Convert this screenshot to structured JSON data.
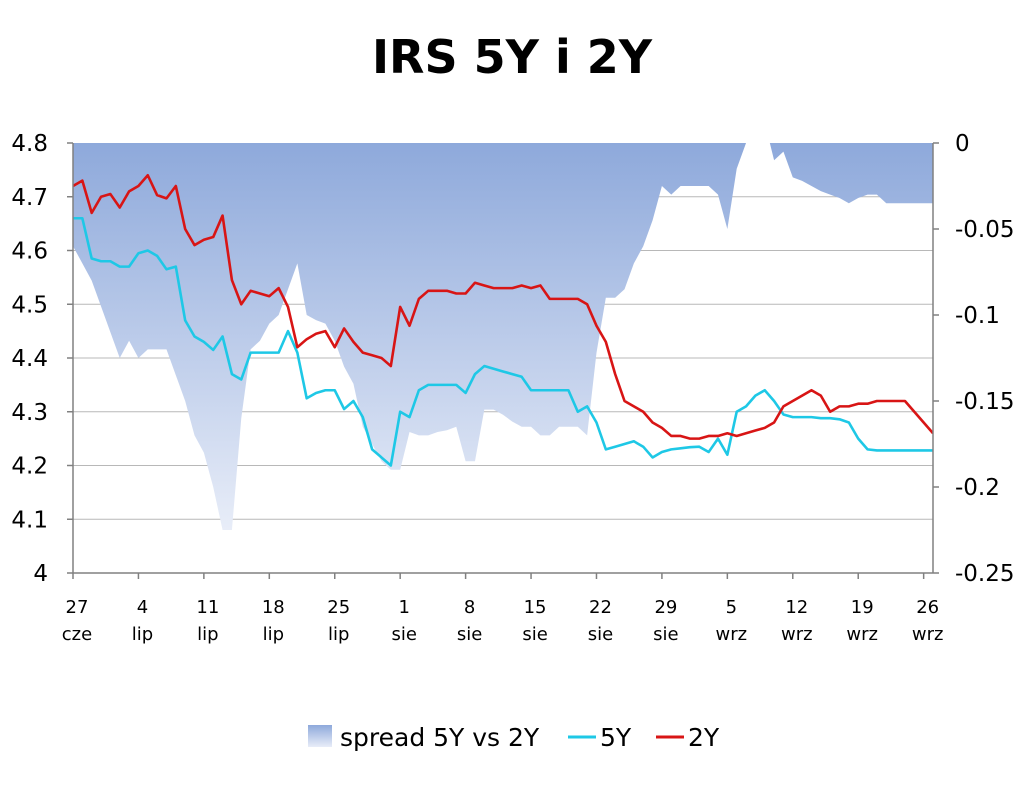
{
  "chart_data": {
    "type": "line",
    "title": "IRS 5Y i 2Y",
    "colors": {
      "spread": "#8EA9DB",
      "5Y": "#1EC8E6",
      "2Y": "#D81515"
    },
    "x_axis": {
      "tick_labels": [
        {
          "day": "27",
          "month": "cze"
        },
        {
          "day": "4",
          "month": "lip"
        },
        {
          "day": "11",
          "month": "lip"
        },
        {
          "day": "18",
          "month": "lip"
        },
        {
          "day": "25",
          "month": "lip"
        },
        {
          "day": "1",
          "month": "sie"
        },
        {
          "day": "8",
          "month": "sie"
        },
        {
          "day": "15",
          "month": "sie"
        },
        {
          "day": "22",
          "month": "sie"
        },
        {
          "day": "29",
          "month": "sie"
        },
        {
          "day": "5",
          "month": "wrz"
        },
        {
          "day": "12",
          "month": "wrz"
        },
        {
          "day": "19",
          "month": "wrz"
        },
        {
          "day": "26",
          "month": "wrz"
        }
      ]
    },
    "y_left": {
      "ylim": [
        4.0,
        4.8
      ],
      "ticks": [
        "4.8",
        "4.7",
        "4.6",
        "4.5",
        "4.4",
        "4.3",
        "4.2",
        "4.1",
        "4"
      ]
    },
    "y_right": {
      "ylim": [
        -0.25,
        0.0
      ],
      "ticks": [
        "0",
        "-0.05",
        "-0.1",
        "-0.15",
        "-0.2",
        "-0.25"
      ]
    },
    "grid": "horizontal",
    "legend_position": "bottom",
    "legend": [
      {
        "name": "spread 5Y vs 2Y",
        "kind": "area"
      },
      {
        "name": "5Y",
        "kind": "line"
      },
      {
        "name": "2Y",
        "kind": "line"
      }
    ],
    "series": [
      {
        "name": "2Y",
        "axis": "left",
        "type": "line",
        "x": [
          0,
          1,
          2,
          3,
          4,
          5,
          6,
          7,
          8,
          9,
          10,
          11,
          12,
          13,
          14,
          15,
          16,
          17,
          18,
          19,
          20,
          21,
          22,
          23,
          24,
          25,
          26,
          27,
          28,
          29,
          30,
          31,
          32,
          33,
          34,
          35,
          36,
          37,
          38,
          39,
          40,
          41,
          42,
          43,
          44,
          45,
          46,
          47,
          48,
          49,
          50,
          51,
          52,
          53,
          54,
          55,
          56,
          57,
          58,
          59,
          60,
          61,
          62,
          63,
          64,
          65,
          66,
          67,
          68,
          69,
          70,
          71,
          72,
          73,
          74,
          75,
          76,
          77,
          78,
          79,
          80,
          81,
          82,
          83,
          84,
          85,
          86,
          87,
          88,
          89,
          90,
          91,
          92
        ],
        "values": [
          4.72,
          4.73,
          4.67,
          4.7,
          4.705,
          4.68,
          4.71,
          4.72,
          4.74,
          4.703,
          4.697,
          4.72,
          4.64,
          4.61,
          4.62,
          4.625,
          4.665,
          4.545,
          4.5,
          4.525,
          4.52,
          4.515,
          4.53,
          4.495,
          4.42,
          4.435,
          4.445,
          4.45,
          4.42,
          4.455,
          4.43,
          4.41,
          4.405,
          4.4,
          4.385,
          4.495,
          4.46,
          4.51,
          4.525,
          4.525,
          4.525,
          4.52,
          4.52,
          4.54,
          4.535,
          4.53,
          4.53,
          4.53,
          4.535,
          4.53,
          4.535,
          4.51,
          4.51,
          4.51,
          4.51,
          4.5,
          4.46,
          4.43,
          4.37,
          4.32,
          4.31,
          4.3,
          4.28,
          4.27,
          4.255,
          4.255,
          4.25,
          4.25,
          4.255,
          4.255,
          4.26,
          4.255,
          4.26,
          4.265,
          4.27,
          4.28,
          4.31,
          4.32,
          4.33,
          4.34,
          4.33,
          4.3,
          4.31,
          4.31,
          4.315,
          4.315,
          4.32,
          4.32,
          4.32,
          4.32,
          4.3,
          4.28,
          4.26
        ]
      },
      {
        "name": "5Y",
        "axis": "left",
        "type": "line",
        "x": [
          0,
          1,
          2,
          3,
          4,
          5,
          6,
          7,
          8,
          9,
          10,
          11,
          12,
          13,
          14,
          15,
          16,
          17,
          18,
          19,
          20,
          21,
          22,
          23,
          24,
          25,
          26,
          27,
          28,
          29,
          30,
          31,
          32,
          33,
          34,
          35,
          36,
          37,
          38,
          39,
          40,
          41,
          42,
          43,
          44,
          45,
          46,
          47,
          48,
          49,
          50,
          51,
          52,
          53,
          54,
          55,
          56,
          57,
          58,
          59,
          60,
          61,
          62,
          63,
          64,
          65,
          66,
          67,
          68,
          69,
          70,
          71,
          72,
          73,
          74,
          75,
          76,
          77,
          78,
          79,
          80,
          81,
          82,
          83,
          84,
          85,
          86,
          87,
          88,
          89,
          90,
          91,
          92
        ],
        "values": [
          4.66,
          4.66,
          4.585,
          4.58,
          4.58,
          4.57,
          4.57,
          4.595,
          4.6,
          4.59,
          4.565,
          4.57,
          4.47,
          4.44,
          4.43,
          4.415,
          4.44,
          4.37,
          4.36,
          4.41,
          4.41,
          4.41,
          4.41,
          4.45,
          4.41,
          4.325,
          4.335,
          4.34,
          4.34,
          4.305,
          4.32,
          4.29,
          4.23,
          4.215,
          4.2,
          4.3,
          4.29,
          4.34,
          4.35,
          4.35,
          4.35,
          4.35,
          4.335,
          4.37,
          4.385,
          4.38,
          4.375,
          4.37,
          4.365,
          4.34,
          4.34,
          4.34,
          4.34,
          4.34,
          4.3,
          4.31,
          4.28,
          4.23,
          4.235,
          4.24,
          4.245,
          4.235,
          4.215,
          4.225,
          4.23,
          4.232,
          4.234,
          4.235,
          4.225,
          4.25,
          4.22,
          4.3,
          4.31,
          4.33,
          4.34,
          4.32,
          4.295,
          4.29,
          4.29,
          4.29,
          4.288,
          4.288,
          4.286,
          4.28,
          4.25,
          4.23,
          4.228,
          4.228,
          4.228,
          4.228,
          4.228,
          4.228,
          4.228
        ]
      },
      {
        "name": "spread 5Y vs 2Y",
        "axis": "right",
        "type": "area",
        "x": [
          0,
          1,
          2,
          3,
          4,
          5,
          6,
          7,
          8,
          9,
          10,
          11,
          12,
          13,
          14,
          15,
          16,
          17,
          18,
          19,
          20,
          21,
          22,
          23,
          24,
          25,
          26,
          27,
          28,
          29,
          30,
          31,
          32,
          33,
          34,
          35,
          36,
          37,
          38,
          39,
          40,
          41,
          42,
          43,
          44,
          45,
          46,
          47,
          48,
          49,
          50,
          51,
          52,
          53,
          54,
          55,
          56,
          57,
          58,
          59,
          60,
          61,
          62,
          63,
          64,
          65,
          66,
          67,
          68,
          69,
          70,
          71,
          72,
          73,
          74,
          75,
          76,
          77,
          78,
          79,
          80,
          81,
          82,
          83,
          84,
          85,
          86,
          87,
          88,
          89,
          90,
          91,
          92
        ],
        "values": [
          -0.06,
          -0.07,
          -0.08,
          -0.095,
          -0.11,
          -0.125,
          -0.115,
          -0.125,
          -0.12,
          -0.12,
          -0.12,
          -0.135,
          -0.15,
          -0.17,
          -0.18,
          -0.2,
          -0.225,
          -0.225,
          -0.16,
          -0.12,
          -0.115,
          -0.105,
          -0.1,
          -0.085,
          -0.07,
          -0.1,
          -0.103,
          -0.105,
          -0.115,
          -0.13,
          -0.14,
          -0.165,
          -0.175,
          -0.185,
          -0.19,
          -0.19,
          -0.168,
          -0.17,
          -0.17,
          -0.168,
          -0.167,
          -0.165,
          -0.185,
          -0.185,
          -0.155,
          -0.155,
          -0.158,
          -0.162,
          -0.165,
          -0.165,
          -0.17,
          -0.17,
          -0.165,
          -0.165,
          -0.165,
          -0.17,
          -0.122,
          -0.09,
          -0.09,
          -0.085,
          -0.07,
          -0.06,
          -0.045,
          -0.025,
          -0.03,
          -0.025,
          -0.025,
          -0.025,
          -0.025,
          -0.03,
          -0.05,
          -0.015,
          0.0,
          0.01,
          0.012,
          -0.01,
          -0.005,
          -0.02,
          -0.022,
          -0.025,
          -0.028,
          -0.03,
          -0.032,
          -0.035,
          -0.032,
          -0.03,
          -0.03,
          -0.035,
          -0.035,
          -0.035,
          -0.035,
          -0.035,
          -0.035
        ]
      }
    ]
  }
}
